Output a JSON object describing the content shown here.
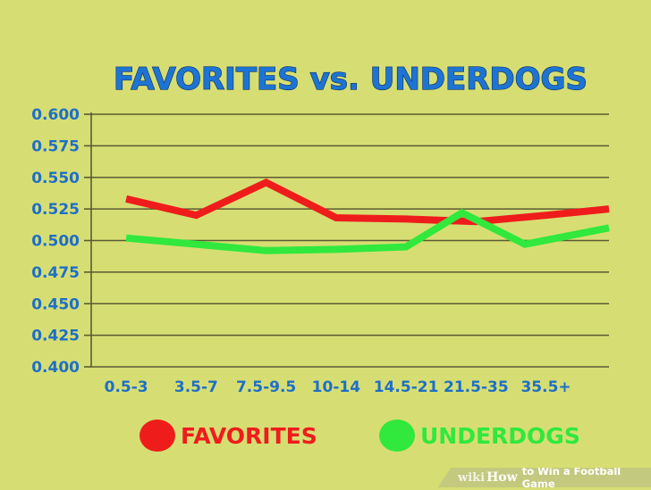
{
  "chart_data": {
    "type": "line",
    "title": "FAVORITES vs. UNDERDOGS",
    "categories": [
      "0.5-3",
      "3.5-7",
      "7.5-9.5",
      "10-14",
      "14.5-21",
      "21.5-35",
      "35.5+"
    ],
    "yticks": [
      "0.600",
      "0.575",
      "0.550",
      "0.525",
      "0.500",
      "0.475",
      "0.450",
      "0.425",
      "0.400"
    ],
    "ylim": [
      0.4,
      0.6
    ],
    "grid": true,
    "legend_position": "bottom",
    "series": [
      {
        "name": "FAVORITES",
        "color": "#ef1c1c",
        "points": [
          {
            "x": 0.5,
            "y": 0.533
          },
          {
            "x": 1.5,
            "y": 0.52
          },
          {
            "x": 2.5,
            "y": 0.546
          },
          {
            "x": 3.5,
            "y": 0.518
          },
          {
            "x": 4.5,
            "y": 0.517
          },
          {
            "x": 5.5,
            "y": 0.515
          },
          {
            "x": 6.5,
            "y": 0.52
          },
          {
            "x": 7.4,
            "y": 0.525
          }
        ]
      },
      {
        "name": "UNDERDOGS",
        "color": "#31e83d",
        "points": [
          {
            "x": 0.5,
            "y": 0.502
          },
          {
            "x": 1.5,
            "y": 0.497
          },
          {
            "x": 2.5,
            "y": 0.492
          },
          {
            "x": 3.5,
            "y": 0.493
          },
          {
            "x": 4.5,
            "y": 0.495
          },
          {
            "x": 5.3,
            "y": 0.522
          },
          {
            "x": 6.2,
            "y": 0.497
          },
          {
            "x": 7.4,
            "y": 0.51
          }
        ]
      }
    ]
  },
  "watermark": {
    "prefix": "wiki",
    "brand": "How",
    "text": "to Win a Football Game"
  }
}
